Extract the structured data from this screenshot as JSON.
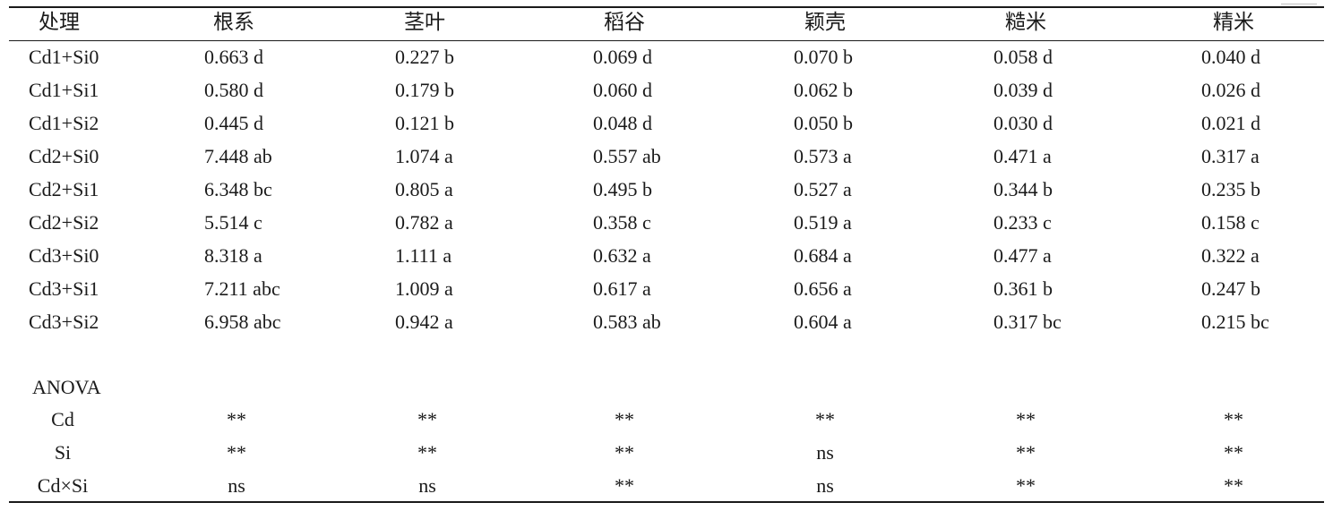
{
  "table": {
    "headers": [
      "处理",
      "根系",
      "茎叶",
      "稻谷",
      "颖壳",
      "糙米",
      "精米"
    ],
    "rows": [
      [
        "Cd1+Si0",
        "0.663 d",
        "0.227 b",
        "0.069 d",
        "0.070 b",
        "0.058 d",
        "0.040 d"
      ],
      [
        "Cd1+Si1",
        "0.580 d",
        "0.179 b",
        "0.060 d",
        "0.062 b",
        "0.039 d",
        "0.026 d"
      ],
      [
        "Cd1+Si2",
        "0.445 d",
        "0.121 b",
        "0.048 d",
        "0.050 b",
        "0.030 d",
        "0.021 d"
      ],
      [
        "Cd2+Si0",
        "7.448 ab",
        "1.074 a",
        "0.557 ab",
        "0.573 a",
        "0.471 a",
        "0.317 a"
      ],
      [
        "Cd2+Si1",
        "6.348 bc",
        "0.805 a",
        "0.495 b",
        "0.527 a",
        "0.344 b",
        "0.235 b"
      ],
      [
        "Cd2+Si2",
        "5.514 c",
        "0.782 a",
        "0.358 c",
        "0.519 a",
        "0.233 c",
        "0.158 c"
      ],
      [
        "Cd3+Si0",
        "8.318 a",
        "1.111 a",
        "0.632 a",
        "0.684 a",
        "0.477 a",
        "0.322 a"
      ],
      [
        "Cd3+Si1",
        "7.211 abc",
        "1.009 a",
        "0.617 a",
        "0.656 a",
        "0.361 b",
        "0.247 b"
      ],
      [
        "Cd3+Si2",
        "6.958 abc",
        "0.942 a",
        "0.583 ab",
        "0.604 a",
        "0.317 bc",
        "0.215 bc"
      ]
    ],
    "anova_label": "ANOVA",
    "anova_rows": [
      [
        "Cd",
        "**",
        "**",
        "**",
        "**",
        "**",
        "**"
      ],
      [
        "Si",
        "**",
        "**",
        "**",
        "ns",
        "**",
        "**"
      ],
      [
        "Cd×Si",
        "ns",
        "ns",
        "**",
        "ns",
        "**",
        "**"
      ]
    ]
  }
}
